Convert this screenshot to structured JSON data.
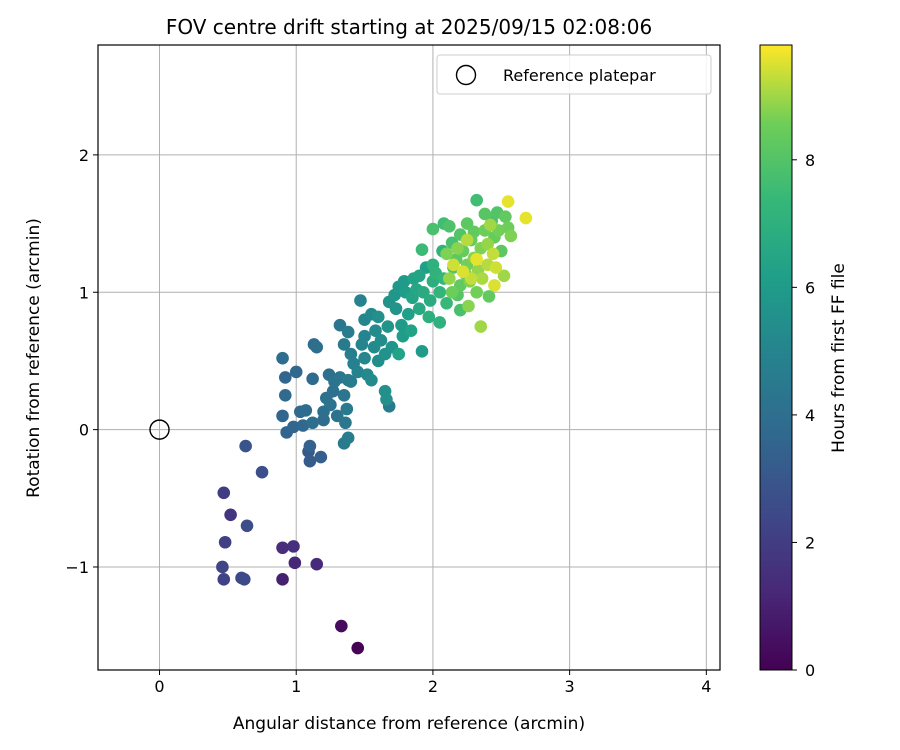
{
  "chart_data": {
    "type": "scatter",
    "title": "FOV centre drift starting at 2025/09/15 02:08:06",
    "xlabel": "Angular distance from reference (arcmin)",
    "ylabel": "Rotation from reference (arcmin)",
    "xlim": [
      -0.45,
      4.1
    ],
    "ylim": [
      -1.75,
      2.8
    ],
    "xticks": [
      0,
      1,
      2,
      3,
      4
    ],
    "yticks": [
      -1,
      0,
      1,
      2
    ],
    "xtick_labels": [
      "0",
      "1",
      "2",
      "3",
      "4"
    ],
    "ytick_labels": [
      "−1",
      "0",
      "1",
      "2"
    ],
    "grid": true,
    "legend": {
      "position": "top-right",
      "entries": [
        "Reference platepar"
      ]
    },
    "reference_point": {
      "x": 0,
      "y": 0
    },
    "colorbar": {
      "label": "Hours from first FF file",
      "colormap": "viridis",
      "range": [
        0,
        9.8
      ],
      "ticks": [
        0,
        2,
        4,
        6,
        8
      ],
      "tick_labels": [
        "0",
        "2",
        "4",
        "6",
        "8"
      ]
    },
    "points": [
      [
        1.45,
        -1.59,
        0.05
      ],
      [
        1.33,
        -1.43,
        0.3
      ],
      [
        0.9,
        -1.09,
        1.0
      ],
      [
        0.99,
        -0.97,
        1.2
      ],
      [
        1.15,
        -0.98,
        1.3
      ],
      [
        0.9,
        -0.86,
        1.4
      ],
      [
        0.98,
        -0.85,
        1.5
      ],
      [
        0.52,
        -0.62,
        1.7
      ],
      [
        0.47,
        -0.46,
        2.0
      ],
      [
        0.48,
        -0.82,
        2.1
      ],
      [
        0.46,
        -1.0,
        2.3
      ],
      [
        0.47,
        -1.09,
        2.2
      ],
      [
        0.6,
        -1.08,
        2.4
      ],
      [
        0.62,
        -1.09,
        2.5
      ],
      [
        0.64,
        -0.7,
        2.6
      ],
      [
        0.75,
        -0.31,
        2.7
      ],
      [
        0.63,
        -0.12,
        2.9
      ],
      [
        1.09,
        -0.16,
        3.0
      ],
      [
        1.1,
        -0.23,
        3.2
      ],
      [
        1.18,
        -0.2,
        3.3
      ],
      [
        1.1,
        -0.12,
        3.4
      ],
      [
        0.93,
        -0.02,
        3.5
      ],
      [
        0.9,
        0.1,
        3.6
      ],
      [
        0.98,
        0.02,
        3.6
      ],
      [
        1.05,
        0.03,
        3.7
      ],
      [
        1.0,
        0.42,
        3.7
      ],
      [
        0.92,
        0.25,
        3.8
      ],
      [
        0.92,
        0.38,
        3.6
      ],
      [
        0.9,
        0.52,
        3.9
      ],
      [
        1.03,
        0.13,
        3.8
      ],
      [
        1.07,
        0.14,
        3.9
      ],
      [
        1.12,
        0.05,
        4.0
      ],
      [
        1.12,
        0.37,
        3.8
      ],
      [
        1.13,
        0.62,
        3.9
      ],
      [
        1.15,
        0.6,
        4.0
      ],
      [
        1.2,
        0.07,
        3.9
      ],
      [
        1.2,
        0.13,
        4.0
      ],
      [
        1.22,
        0.23,
        4.1
      ],
      [
        1.24,
        0.4,
        4.0
      ],
      [
        1.25,
        0.18,
        4.2
      ],
      [
        1.27,
        0.28,
        4.1
      ],
      [
        1.28,
        0.35,
        4.2
      ],
      [
        1.3,
        0.1,
        4.2
      ],
      [
        1.32,
        0.38,
        4.3
      ],
      [
        1.35,
        0.25,
        4.3
      ],
      [
        1.36,
        0.05,
        4.4
      ],
      [
        1.37,
        0.15,
        4.5
      ],
      [
        1.38,
        0.36,
        4.5
      ],
      [
        1.35,
        -0.1,
        4.5
      ],
      [
        1.38,
        -0.06,
        4.6
      ],
      [
        1.32,
        0.76,
        4.3
      ],
      [
        1.35,
        0.62,
        4.5
      ],
      [
        1.38,
        0.71,
        4.6
      ],
      [
        1.4,
        0.55,
        4.7
      ],
      [
        1.4,
        0.35,
        4.6
      ],
      [
        1.42,
        0.48,
        4.8
      ],
      [
        1.45,
        0.42,
        4.9
      ],
      [
        1.47,
        0.94,
        4.9
      ],
      [
        1.48,
        0.62,
        5.0
      ],
      [
        1.5,
        0.68,
        5.0
      ],
      [
        1.5,
        0.8,
        5.1
      ],
      [
        1.5,
        0.52,
        5.1
      ],
      [
        1.52,
        0.4,
        5.2
      ],
      [
        1.55,
        0.84,
        5.2
      ],
      [
        1.55,
        0.36,
        5.3
      ],
      [
        1.57,
        0.6,
        5.3
      ],
      [
        1.58,
        0.72,
        5.3
      ],
      [
        1.6,
        0.5,
        5.4
      ],
      [
        1.6,
        0.82,
        5.5
      ],
      [
        1.62,
        0.65,
        5.4
      ],
      [
        1.65,
        0.28,
        5.5
      ],
      [
        1.66,
        0.22,
        5.5
      ],
      [
        1.68,
        0.17,
        4.5
      ],
      [
        1.65,
        0.55,
        5.6
      ],
      [
        1.67,
        0.75,
        5.7
      ],
      [
        1.68,
        0.93,
        5.6
      ],
      [
        1.7,
        0.6,
        5.7
      ],
      [
        1.72,
        0.98,
        5.8
      ],
      [
        1.73,
        0.88,
        5.7
      ],
      [
        1.75,
        1.04,
        5.9
      ],
      [
        1.75,
        0.55,
        6.3
      ],
      [
        1.77,
        0.76,
        6.0
      ],
      [
        1.78,
        0.68,
        6.1
      ],
      [
        1.79,
        1.08,
        6.0
      ],
      [
        1.8,
        1.0,
        6.1
      ],
      [
        1.82,
        0.84,
        6.2
      ],
      [
        1.84,
        0.72,
        6.3
      ],
      [
        1.85,
        0.96,
        6.4
      ],
      [
        1.86,
        1.1,
        6.3
      ],
      [
        1.88,
        1.02,
        6.5
      ],
      [
        1.9,
        0.88,
        6.6
      ],
      [
        1.9,
        1.12,
        6.4
      ],
      [
        1.92,
        0.57,
        6.0
      ],
      [
        1.93,
        1.0,
        6.7
      ],
      [
        1.95,
        1.18,
        6.2
      ],
      [
        1.97,
        0.82,
        6.9
      ],
      [
        1.98,
        0.94,
        6.8
      ],
      [
        2.0,
        1.08,
        6.9
      ],
      [
        2.0,
        1.2,
        7.0
      ],
      [
        2.02,
        1.14,
        7.1
      ],
      [
        2.05,
        0.78,
        7.0
      ],
      [
        2.05,
        1.0,
        7.2
      ],
      [
        2.07,
        1.3,
        7.1
      ],
      [
        2.08,
        1.1,
        7.3
      ],
      [
        2.1,
        0.92,
        7.4
      ],
      [
        1.92,
        1.31,
        7.5
      ],
      [
        2.0,
        1.46,
        7.8
      ],
      [
        2.08,
        1.5,
        7.6
      ],
      [
        2.12,
        1.48,
        7.9
      ],
      [
        2.14,
        1.36,
        7.8
      ],
      [
        2.15,
        1.18,
        8.0
      ],
      [
        2.17,
        1.24,
        8.2
      ],
      [
        2.18,
        0.98,
        8.1
      ],
      [
        2.2,
        1.05,
        8.3
      ],
      [
        2.2,
        1.42,
        8.0
      ],
      [
        2.2,
        0.87,
        7.8
      ],
      [
        2.22,
        1.3,
        8.4
      ],
      [
        2.24,
        1.13,
        8.5
      ],
      [
        2.25,
        1.5,
        8.2
      ],
      [
        2.25,
        1.2,
        8.6
      ],
      [
        2.27,
        1.08,
        8.7
      ],
      [
        2.28,
        1.38,
        8.4
      ],
      [
        2.3,
        1.25,
        8.8
      ],
      [
        2.3,
        1.44,
        8.3
      ],
      [
        2.32,
        1.0,
        8.6
      ],
      [
        2.32,
        1.67,
        7.6
      ],
      [
        2.33,
        1.16,
        8.9
      ],
      [
        2.35,
        1.32,
        8.7
      ],
      [
        2.35,
        0.75,
        9.0
      ],
      [
        2.36,
        1.1,
        9.1
      ],
      [
        2.38,
        1.45,
        8.5
      ],
      [
        2.38,
        1.57,
        8.1
      ],
      [
        2.4,
        1.2,
        9.2
      ],
      [
        2.4,
        1.35,
        8.9
      ],
      [
        2.41,
        0.97,
        8.3
      ],
      [
        2.42,
        1.49,
        9.0
      ],
      [
        2.43,
        1.52,
        7.9
      ],
      [
        2.44,
        1.28,
        9.3
      ],
      [
        2.45,
        1.05,
        9.5
      ],
      [
        2.45,
        1.4,
        8.4
      ],
      [
        2.46,
        1.18,
        9.4
      ],
      [
        2.47,
        1.58,
        8.0
      ],
      [
        2.48,
        1.45,
        8.6
      ],
      [
        2.5,
        1.3,
        8.2
      ],
      [
        2.52,
        1.12,
        9.0
      ],
      [
        2.53,
        1.55,
        8.3
      ],
      [
        2.55,
        1.47,
        8.5
      ],
      [
        2.55,
        1.66,
        9.6
      ],
      [
        2.57,
        1.41,
        8.7
      ],
      [
        2.68,
        1.54,
        9.6
      ],
      [
        2.15,
        1.2,
        9.4
      ],
      [
        2.22,
        1.15,
        9.5
      ],
      [
        2.28,
        1.1,
        9.3
      ],
      [
        2.25,
        1.38,
        9.2
      ],
      [
        2.32,
        1.24,
        9.6
      ],
      [
        2.18,
        1.32,
        8.8
      ],
      [
        2.12,
        1.1,
        8.9
      ],
      [
        2.1,
        1.28,
        8.7
      ],
      [
        2.26,
        0.9,
        8.8
      ],
      [
        2.14,
        1.0,
        8.5
      ]
    ]
  }
}
